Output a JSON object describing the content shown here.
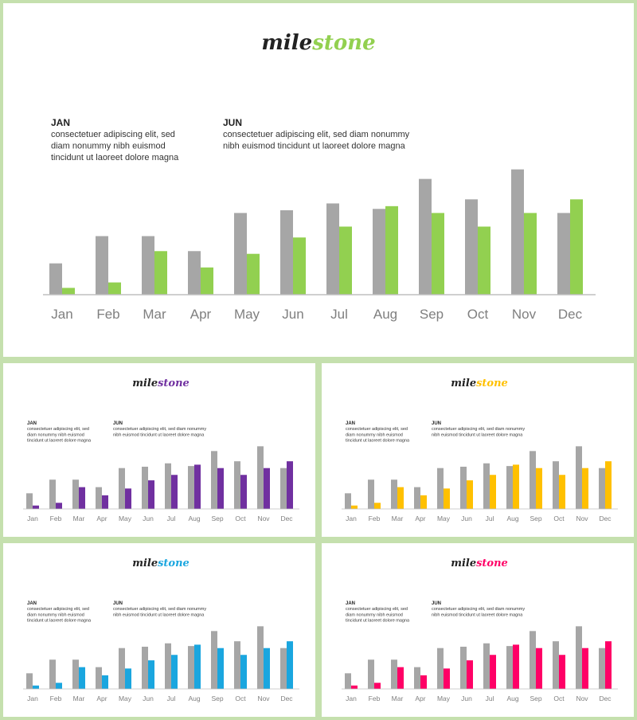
{
  "logo": {
    "part1": "mile",
    "part2": "stone"
  },
  "annotations": [
    {
      "title": "JAN",
      "lines": [
        "consectetuer adipiscing elit, sed",
        "diam nonummy nibh euismod",
        "tincidunt ut laoreet dolore magna"
      ]
    },
    {
      "title": "JUN",
      "lines": [
        "consectetuer adipiscing elit, sed diam nonummy",
        "nibh euismod tincidunt ut laoreet dolore magna"
      ]
    }
  ],
  "panels": [
    {
      "id": "green",
      "accent": "#92d050"
    },
    {
      "id": "purple",
      "accent": "#7030a0"
    },
    {
      "id": "yellow",
      "accent": "#ffc000"
    },
    {
      "id": "blue",
      "accent": "#1aa6df"
    },
    {
      "id": "pink",
      "accent": "#ff0066"
    }
  ],
  "chart_data": {
    "type": "bar",
    "categories": [
      "Jan",
      "Feb",
      "Mar",
      "Apr",
      "May",
      "Jun",
      "Jul",
      "Aug",
      "Sep",
      "Oct",
      "Nov",
      "Dec"
    ],
    "series": [
      {
        "color": "#a6a6a6",
        "values": [
          23,
          43,
          43,
          32,
          60,
          62,
          67,
          63,
          85,
          70,
          92,
          60
        ]
      },
      {
        "color": "accent",
        "values": [
          5,
          9,
          32,
          20,
          30,
          42,
          50,
          65,
          60,
          50,
          60,
          70
        ]
      }
    ],
    "ylim": [
      0,
      100
    ],
    "grid": false,
    "legend": "none"
  }
}
